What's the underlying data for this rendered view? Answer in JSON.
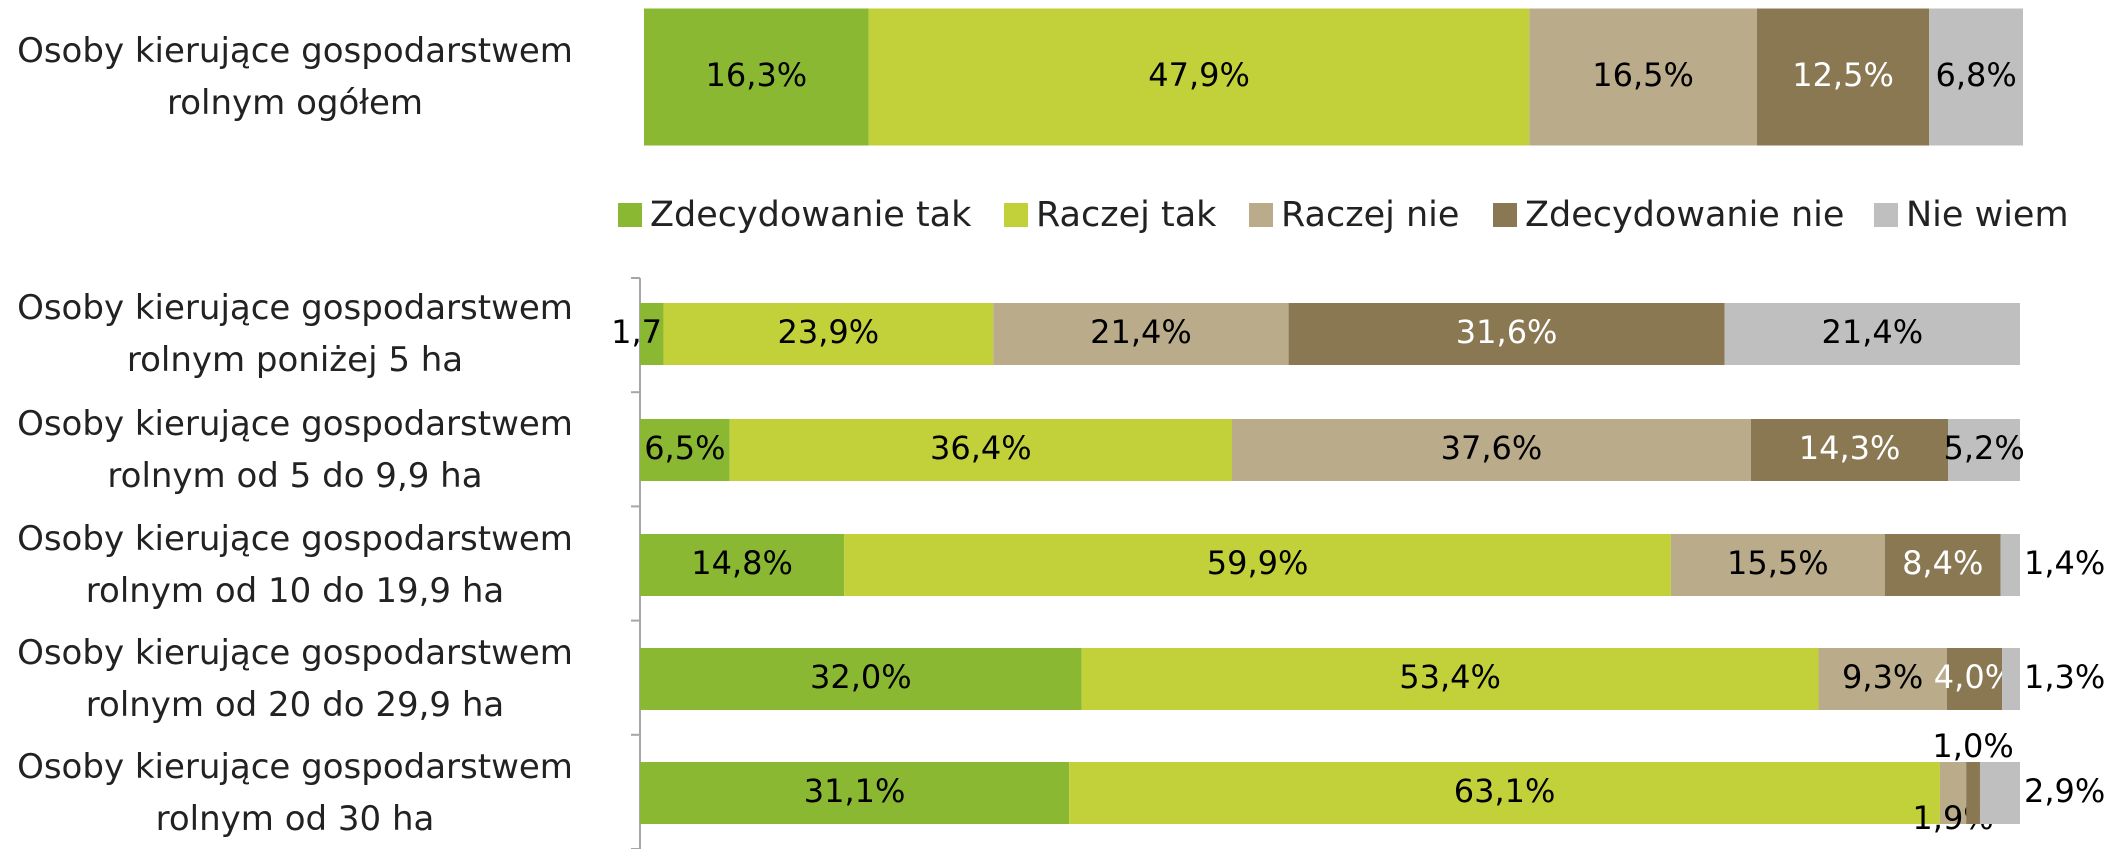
{
  "chart_data": [
    {
      "type": "bar",
      "orientation": "horizontal",
      "stacked": true,
      "categories": [
        "Osoby kierujące gospodarstwem\nrolnym ogółem"
      ],
      "xlim": [
        0,
        100
      ],
      "series": [
        {
          "name": "Zdecydowanie tak",
          "color": "#8ab833",
          "label_color": "#000000",
          "values": [
            16.3
          ],
          "value_labels": [
            "16,3%"
          ]
        },
        {
          "name": "Raczej tak",
          "color": "#c2d13a",
          "label_color": "#000000",
          "values": [
            47.9
          ],
          "value_labels": [
            "47,9%"
          ]
        },
        {
          "name": "Raczej nie",
          "color": "#baab8b",
          "label_color": "#000000",
          "values": [
            16.5
          ],
          "value_labels": [
            "16,5%"
          ]
        },
        {
          "name": "Zdecydowanie nie",
          "color": "#8a7853",
          "label_color": "#ffffff",
          "values": [
            12.5
          ],
          "value_labels": [
            "12,5%"
          ]
        },
        {
          "name": "Nie wiem",
          "color": "#bfbfbf",
          "label_color": "#000000",
          "values": [
            6.8
          ],
          "value_labels": [
            "6,8%"
          ]
        }
      ]
    },
    {
      "type": "bar",
      "orientation": "horizontal",
      "stacked": true,
      "categories": [
        "Osoby kierujące gospodarstwem\nrolnym poniżej 5 ha",
        "Osoby kierujące gospodarstwem\nrolnym od 5 do 9,9 ha",
        "Osoby kierujące gospodarstwem\nrolnym od 10 do 19,9 ha",
        "Osoby kierujące gospodarstwem\nrolnym od 20 do 29,9 ha",
        "Osoby kierujące gospodarstwem\nrolnym od 30 ha"
      ],
      "xlim": [
        0,
        100
      ],
      "series": [
        {
          "color": "#8ab833",
          "label_color": "#000000",
          "values": [
            1.7,
            6.5,
            14.8,
            32.0,
            31.1
          ],
          "value_labels": [
            "1,7%",
            "6,5%",
            "14,8%",
            "32,0%",
            "31,1%"
          ]
        },
        {
          "color": "#c2d13a",
          "label_color": "#000000",
          "values": [
            23.9,
            36.4,
            59.9,
            53.4,
            63.1
          ],
          "value_labels": [
            "23,9%",
            "36,4%",
            "59,9%",
            "53,4%",
            "63,1%"
          ]
        },
        {
          "color": "#baab8b",
          "label_color": "#000000",
          "values": [
            21.4,
            37.6,
            15.5,
            9.3,
            1.9
          ],
          "value_labels": [
            "21,4%",
            "37,6%",
            "15,5%",
            "9,3%",
            "1,9%"
          ]
        },
        {
          "color": "#8a7853",
          "label_color": "#ffffff",
          "values": [
            31.6,
            14.3,
            8.4,
            4.0,
            1.0
          ],
          "value_labels": [
            "31,6%",
            "14,3%",
            "8,4%",
            "4,0%",
            "1,0%"
          ]
        },
        {
          "color": "#bfbfbf",
          "label_color": "#000000",
          "values": [
            21.4,
            5.2,
            1.4,
            1.3,
            2.9
          ],
          "value_labels": [
            "21,4%",
            "5,2%",
            "1,4%",
            "1,3%",
            "2,9%"
          ]
        }
      ]
    }
  ]
}
